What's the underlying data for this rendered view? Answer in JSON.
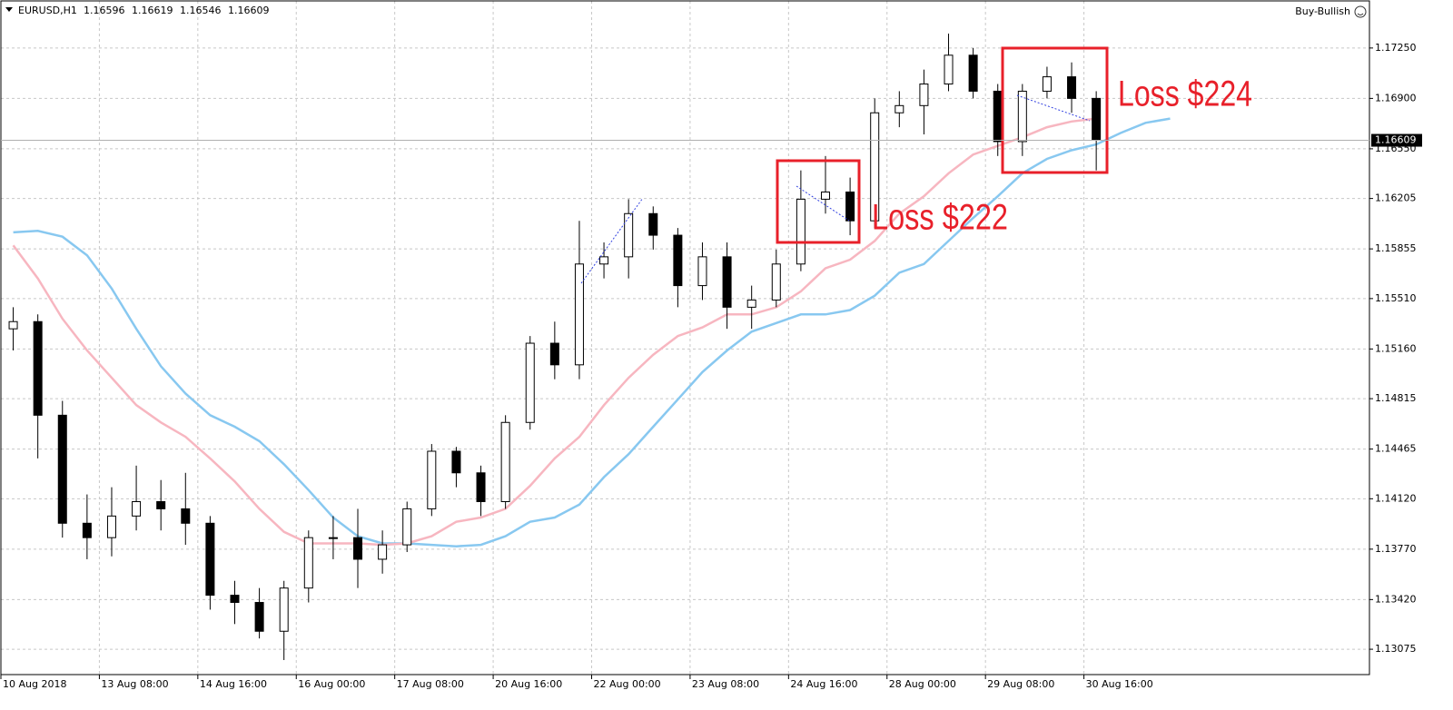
{
  "chart_data": {
    "type": "candlestick",
    "symbol": "EURUSD,H1",
    "header_values": [
      1.16596,
      1.16619,
      1.16546,
      1.16609
    ],
    "indicator": "Buy-Bullish",
    "open": [
      1.153,
      1.1535,
      1.147,
      1.1395,
      1.1385,
      1.14,
      1.141,
      1.1405,
      1.1395,
      1.1345,
      1.134,
      1.132,
      1.135,
      1.1385,
      1.1385,
      1.137,
      1.138,
      1.1405,
      1.1445,
      1.143,
      1.141,
      1.1465,
      1.152,
      1.1505,
      1.1575,
      1.158,
      1.161,
      1.1595,
      1.156,
      1.158,
      1.1545,
      1.155,
      1.1575,
      1.162,
      1.1625,
      1.1605,
      1.168,
      1.1685,
      1.17,
      1.172,
      1.1695,
      1.166,
      1.1695,
      1.1705,
      1.169
    ],
    "high": [
      1.1545,
      1.154,
      1.148,
      1.1415,
      1.142,
      1.1435,
      1.1425,
      1.143,
      1.14,
      1.1355,
      1.135,
      1.1355,
      1.139,
      1.14,
      1.1405,
      1.139,
      1.141,
      1.145,
      1.1448,
      1.1435,
      1.147,
      1.1525,
      1.1535,
      1.1605,
      1.159,
      1.162,
      1.1615,
      1.16,
      1.159,
      1.159,
      1.156,
      1.1585,
      1.164,
      1.165,
      1.1635,
      1.169,
      1.1695,
      1.171,
      1.1735,
      1.1725,
      1.17,
      1.17,
      1.1712,
      1.1715,
      1.1695
    ],
    "low": [
      1.1515,
      1.144,
      1.1385,
      1.137,
      1.1372,
      1.139,
      1.139,
      1.138,
      1.1335,
      1.1325,
      1.1315,
      1.13,
      1.134,
      1.137,
      1.135,
      1.136,
      1.1375,
      1.14,
      1.142,
      1.14,
      1.1405,
      1.146,
      1.1495,
      1.1495,
      1.1565,
      1.1565,
      1.1585,
      1.1545,
      1.155,
      1.153,
      1.153,
      1.1545,
      1.157,
      1.161,
      1.1595,
      1.16,
      1.167,
      1.1665,
      1.1695,
      1.169,
      1.165,
      1.165,
      1.169,
      1.168,
      1.164
    ],
    "close": [
      1.1535,
      1.147,
      1.1395,
      1.1385,
      1.14,
      1.141,
      1.1405,
      1.1395,
      1.1345,
      1.134,
      1.132,
      1.135,
      1.1385,
      1.1385,
      1.137,
      1.138,
      1.1405,
      1.1445,
      1.143,
      1.141,
      1.1465,
      1.152,
      1.1505,
      1.1575,
      1.158,
      1.161,
      1.1595,
      1.156,
      1.158,
      1.1545,
      1.155,
      1.1575,
      1.162,
      1.1625,
      1.1605,
      1.168,
      1.1685,
      1.17,
      1.172,
      1.1695,
      1.166,
      1.1695,
      1.1705,
      1.169,
      1.1661
    ],
    "color_up": "#ffffff",
    "color_down": "#000000",
    "moving_averages": [
      {
        "color": "#88c8f0",
        "values": [
          1.1597,
          1.1598,
          1.1594,
          1.1581,
          1.1558,
          1.153,
          1.1504,
          1.1485,
          1.147,
          1.1462,
          1.1452,
          1.1436,
          1.1418,
          1.1399,
          1.1386,
          1.1381,
          1.1381,
          1.138,
          1.1379,
          1.138,
          1.1386,
          1.1396,
          1.1399,
          1.1408,
          1.1427,
          1.1443,
          1.1462,
          1.1481,
          1.15,
          1.1515,
          1.1528,
          1.1534,
          1.154,
          1.154,
          1.1543,
          1.1553,
          1.1569,
          1.1575,
          1.1591,
          1.1607,
          1.1622,
          1.1638,
          1.1648,
          1.1654,
          1.1658,
          1.1666,
          1.1673,
          1.1676
        ]
      },
      {
        "color": "#f7b6c0",
        "values": [
          1.1588,
          1.1565,
          1.1537,
          1.1515,
          1.1496,
          1.1477,
          1.1465,
          1.1455,
          1.144,
          1.1424,
          1.1405,
          1.1389,
          1.1381,
          1.1381,
          1.1381,
          1.138,
          1.1381,
          1.1386,
          1.1396,
          1.1399,
          1.1405,
          1.1421,
          1.144,
          1.1455,
          1.1477,
          1.1496,
          1.1512,
          1.1525,
          1.1531,
          1.154,
          1.154,
          1.1545,
          1.1556,
          1.1572,
          1.1578,
          1.1591,
          1.161,
          1.1622,
          1.1638,
          1.1651,
          1.1657,
          1.1663,
          1.167,
          1.1674,
          1.1676,
          null,
          null,
          null
        ]
      }
    ],
    "last_price": 1.16609,
    "ylim": [
      1.12899,
      1.17577
    ],
    "yticks": [
      1.13075,
      {
        "value": 1.1342,
        "label": "1.13420"
      },
      {
        "value": 1.1377,
        "label": "1.13770"
      },
      {
        "value": 1.1412,
        "label": "1.14120"
      },
      1.14465,
      1.14815,
      {
        "value": 1.1516,
        "label": "1.15160"
      },
      {
        "value": 1.1551,
        "label": "1.15510"
      },
      1.15855,
      1.16205,
      {
        "value": 1.1655,
        "label": "1.16550"
      },
      {
        "value": 1.169,
        "label": "1.16900"
      },
      {
        "value": 1.1725,
        "label": "1.17250"
      }
    ],
    "xlim": [
      0,
      55.6
    ],
    "xticks": [
      {
        "value": 0,
        "label": "10 Aug 2018"
      },
      {
        "value": 4,
        "label": "13 Aug 08:00"
      },
      {
        "value": 8,
        "label": "14 Aug 16:00"
      },
      {
        "value": 12,
        "label": "16 Aug 00:00"
      },
      {
        "value": 16,
        "label": "17 Aug 08:00"
      },
      {
        "value": 20,
        "label": "20 Aug 16:00"
      },
      {
        "value": 24,
        "label": "22 Aug 00:00"
      },
      {
        "value": 28,
        "label": "23 Aug 08:00"
      },
      {
        "value": 32,
        "label": "24 Aug 16:00"
      },
      {
        "value": 36,
        "label": "28 Aug 00:00"
      },
      {
        "value": 40,
        "label": "29 Aug 08:00"
      },
      {
        "value": 44,
        "label": "30 Aug 16:00"
      }
    ],
    "grid": true,
    "annotations": [
      "Loss $222",
      "Loss $224"
    ]
  }
}
